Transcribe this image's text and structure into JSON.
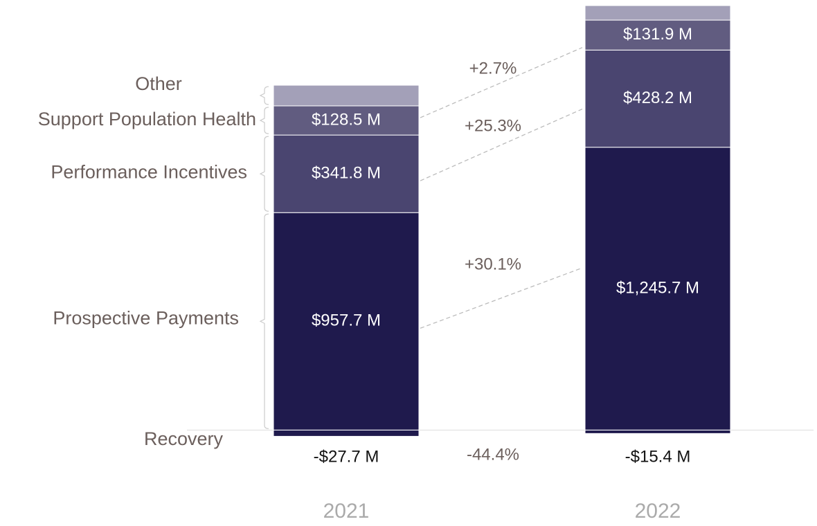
{
  "chart_data": {
    "type": "stacked_bar",
    "categories": [
      "2021",
      "2022"
    ],
    "ylim": [
      -60,
      1870
    ],
    "series": [
      {
        "name": "Recovery",
        "color": "#1f1a4d",
        "values": [
          -27.7,
          -15.4
        ],
        "value_labels": [
          "-$27.7 M",
          "-$15.4 M"
        ],
        "change": "-44.4%"
      },
      {
        "name": "Prospective Payments",
        "color": "#1f1a4d",
        "values": [
          957.7,
          1245.7
        ],
        "value_labels": [
          "$957.7 M",
          "$1,245.7 M"
        ],
        "change": "+30.1%"
      },
      {
        "name": "Performance Incentives",
        "color": "#4a4570",
        "values": [
          341.8,
          428.2
        ],
        "value_labels": [
          "$341.8 M",
          "$428.2 M"
        ],
        "change": "+25.3%"
      },
      {
        "name": "Support Population Health",
        "color": "#615c80",
        "values": [
          128.5,
          131.9
        ],
        "value_labels": [
          "$128.5 M",
          "$131.9 M"
        ],
        "change": "+2.7%"
      },
      {
        "name": "Other",
        "color": "#a3a0b8",
        "values": [
          91,
          64
        ]
      }
    ]
  }
}
